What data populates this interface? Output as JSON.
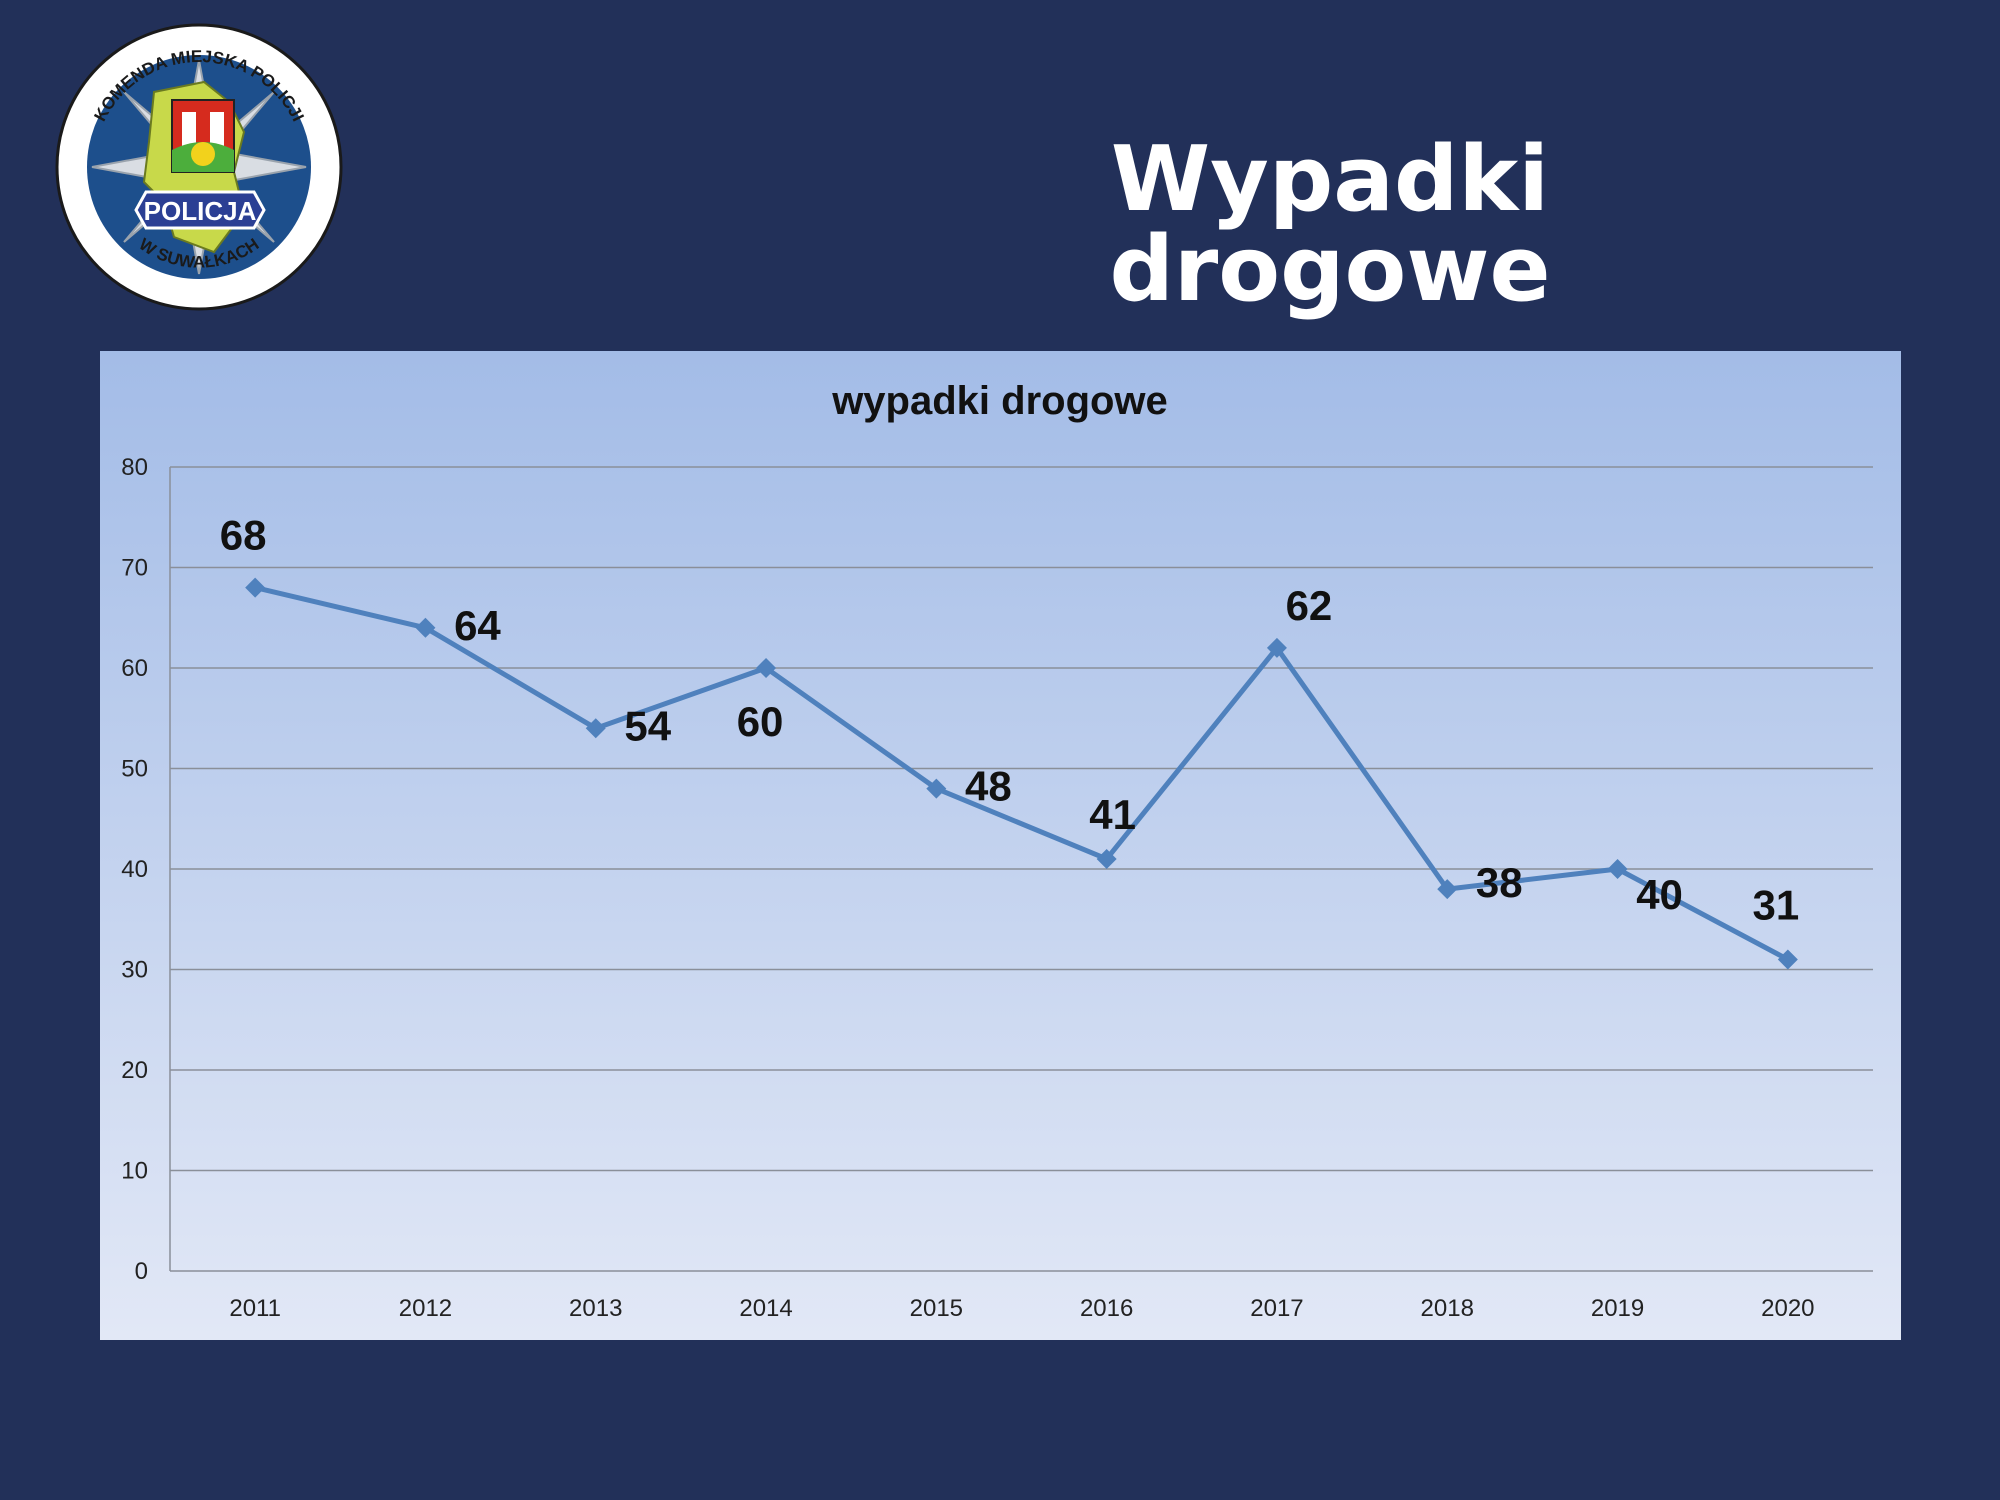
{
  "slide": {
    "title": "Wypadki drogowe"
  },
  "logo": {
    "top_text": "KOMENDA MIEJSKA POLICJI",
    "center_text": "POLICJA",
    "bottom_text": "W SUWAŁKACH"
  },
  "colors": {
    "background": "#223059",
    "panel_top": "#a3bce7",
    "panel_bottom": "#e2e8f6",
    "series_line": "#4f81bd",
    "grid": "#8a8f99",
    "logo_blue": "#1d4f8c",
    "logo_green": "#c8d94a"
  },
  "chart_data": {
    "type": "line",
    "title": "wypadki drogowe",
    "xlabel": "",
    "ylabel": "",
    "ylim": [
      0,
      80
    ],
    "yticks": [
      0,
      10,
      20,
      30,
      40,
      50,
      60,
      70,
      80
    ],
    "grid": true,
    "legend": "none",
    "categories": [
      "2011",
      "2012",
      "2013",
      "2014",
      "2015",
      "2016",
      "2017",
      "2018",
      "2019",
      "2020"
    ],
    "series": [
      {
        "values": [
          68,
          64,
          54,
          60,
          48,
          41,
          62,
          38,
          40,
          31
        ],
        "data_labels": [
          "68",
          "64",
          "54",
          "60",
          "48",
          "41",
          "62",
          "38",
          "40",
          "31"
        ],
        "marker": "diamond"
      }
    ]
  }
}
